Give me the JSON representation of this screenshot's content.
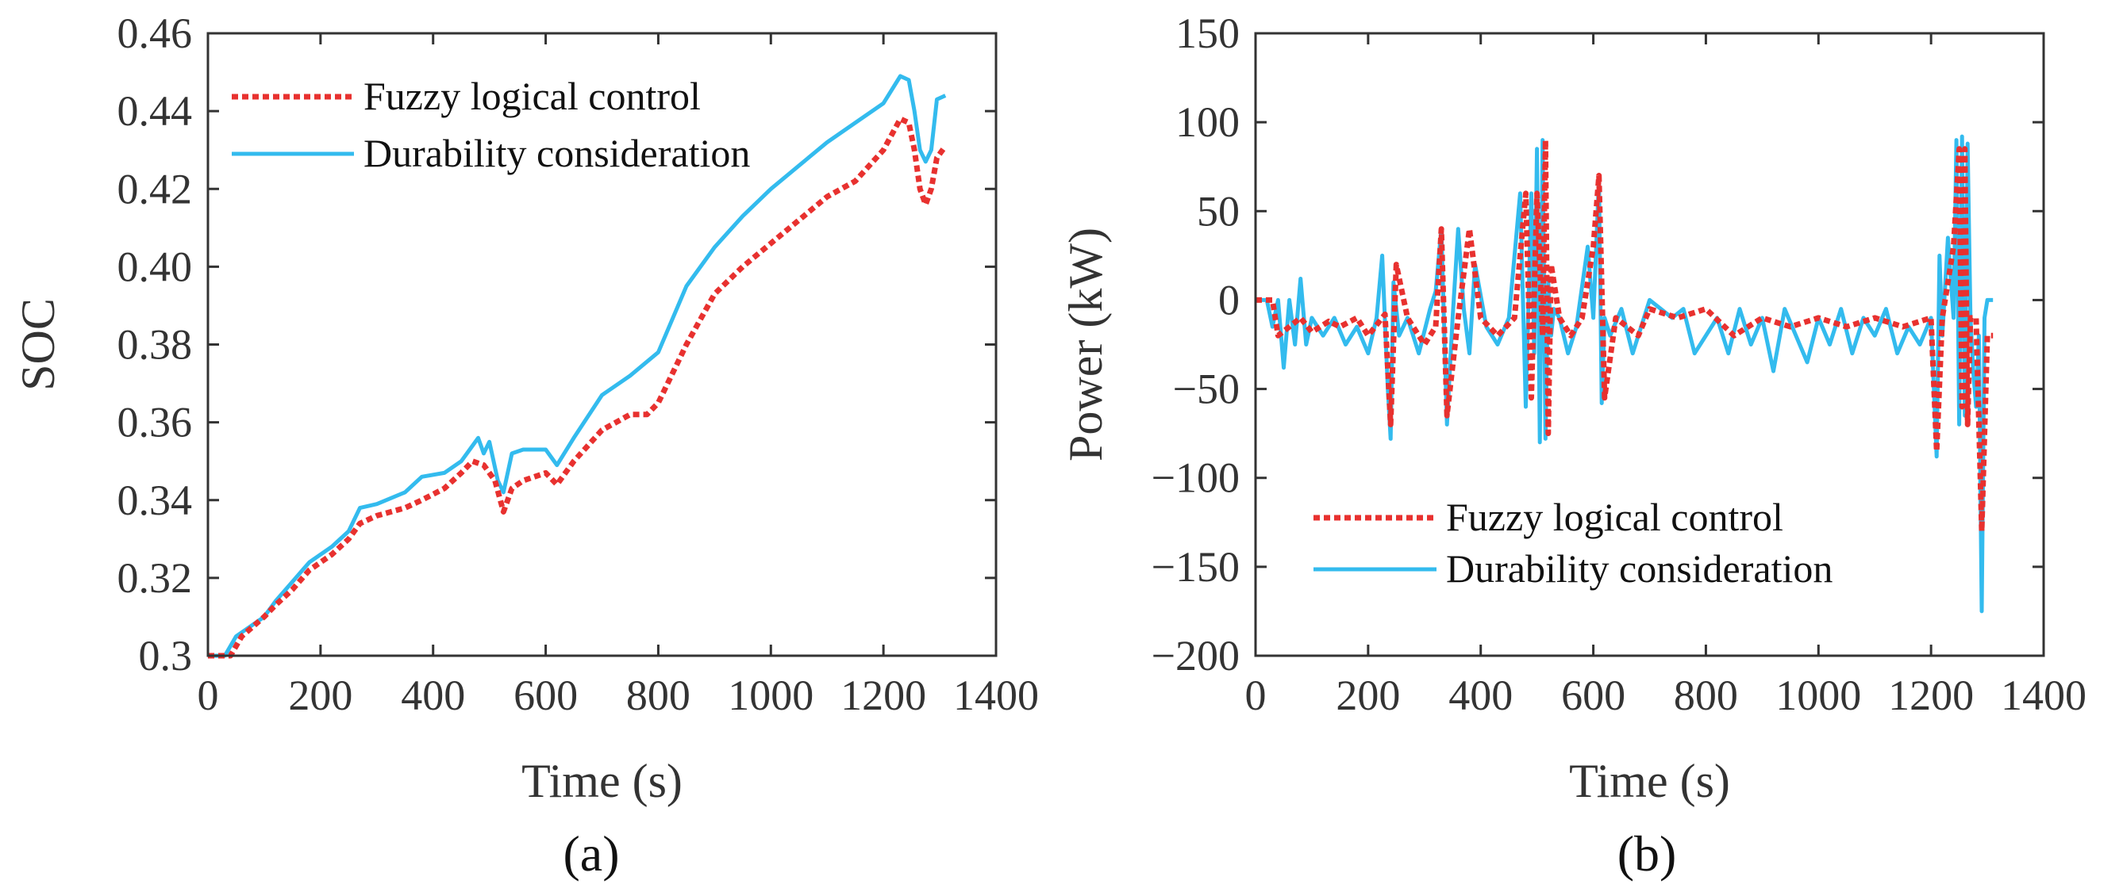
{
  "chart_data": [
    {
      "id": "a",
      "type": "line",
      "caption": "(a)",
      "xlabel": "Time (s)",
      "ylabel": "SOC",
      "xlim": [
        0,
        1400
      ],
      "ylim": [
        0.3,
        0.46
      ],
      "xticks": [
        0,
        200,
        400,
        600,
        800,
        1000,
        1200,
        1400
      ],
      "xtick_labels": [
        "0",
        "200",
        "400",
        "600",
        "800",
        "1000",
        "1200",
        "1400"
      ],
      "yticks": [
        0.3,
        0.32,
        0.34,
        0.36,
        0.38,
        0.4,
        0.42,
        0.44,
        0.46
      ],
      "ytick_labels": [
        "0.3",
        "0.32",
        "0.34",
        "0.36",
        "0.38",
        "0.40",
        "0.42",
        "0.44",
        "0.46"
      ],
      "grid": false,
      "legend_position": "top-left",
      "series": [
        {
          "name": "Fuzzy logical control",
          "color": "#e8312f",
          "style": "dotted",
          "x": [
            0,
            40,
            60,
            100,
            120,
            150,
            180,
            220,
            250,
            270,
            300,
            350,
            380,
            420,
            450,
            470,
            490,
            510,
            525,
            540,
            560,
            580,
            600,
            620,
            650,
            700,
            750,
            780,
            800,
            850,
            900,
            950,
            1000,
            1050,
            1100,
            1150,
            1200,
            1230,
            1245,
            1255,
            1265,
            1275,
            1285,
            1295,
            1310
          ],
          "y": [
            0.3,
            0.3,
            0.305,
            0.31,
            0.313,
            0.317,
            0.322,
            0.326,
            0.33,
            0.334,
            0.336,
            0.338,
            0.34,
            0.343,
            0.347,
            0.35,
            0.349,
            0.345,
            0.337,
            0.343,
            0.345,
            0.346,
            0.347,
            0.344,
            0.35,
            0.358,
            0.362,
            0.362,
            0.365,
            0.38,
            0.393,
            0.4,
            0.406,
            0.412,
            0.418,
            0.422,
            0.43,
            0.438,
            0.437,
            0.43,
            0.42,
            0.416,
            0.42,
            0.428,
            0.431
          ]
        },
        {
          "name": "Durability consideration",
          "color": "#33bbee",
          "style": "solid",
          "x": [
            0,
            30,
            50,
            100,
            120,
            150,
            180,
            220,
            250,
            270,
            300,
            350,
            380,
            420,
            450,
            470,
            480,
            490,
            500,
            515,
            525,
            540,
            560,
            600,
            620,
            650,
            700,
            750,
            800,
            850,
            900,
            950,
            1000,
            1050,
            1100,
            1150,
            1200,
            1230,
            1245,
            1255,
            1265,
            1275,
            1285,
            1295,
            1310
          ],
          "y": [
            0.3,
            0.3,
            0.305,
            0.31,
            0.314,
            0.319,
            0.324,
            0.328,
            0.332,
            0.338,
            0.339,
            0.342,
            0.346,
            0.347,
            0.35,
            0.354,
            0.356,
            0.352,
            0.355,
            0.345,
            0.342,
            0.352,
            0.353,
            0.353,
            0.349,
            0.356,
            0.367,
            0.372,
            0.378,
            0.395,
            0.405,
            0.413,
            0.42,
            0.426,
            0.432,
            0.437,
            0.442,
            0.449,
            0.448,
            0.44,
            0.43,
            0.427,
            0.43,
            0.443,
            0.444
          ]
        }
      ]
    },
    {
      "id": "b",
      "type": "line",
      "caption": "(b)",
      "xlabel": "Time (s)",
      "ylabel": "Power (kW)",
      "xlim": [
        0,
        1400
      ],
      "ylim": [
        -200,
        150
      ],
      "xticks": [
        0,
        200,
        400,
        600,
        800,
        1000,
        1200,
        1400
      ],
      "xtick_labels": [
        "0",
        "200",
        "400",
        "600",
        "800",
        "1000",
        "1200",
        "1400"
      ],
      "yticks": [
        -200,
        -150,
        -100,
        -50,
        0,
        50,
        100,
        150
      ],
      "ytick_labels": [
        "−200",
        "−150",
        "−100",
        "−50",
        "0",
        "50",
        "100",
        "150"
      ],
      "grid": false,
      "legend_position": "bottom-left",
      "series": [
        {
          "name": "Fuzzy logical control",
          "color": "#e8312f",
          "style": "dotted",
          "x": [
            0,
            30,
            40,
            60,
            80,
            100,
            130,
            150,
            180,
            200,
            230,
            240,
            250,
            270,
            300,
            320,
            330,
            340,
            360,
            380,
            400,
            430,
            460,
            480,
            490,
            500,
            510,
            515,
            520,
            525,
            540,
            560,
            580,
            600,
            610,
            620,
            640,
            680,
            700,
            750,
            800,
            850,
            900,
            950,
            1000,
            1050,
            1100,
            1150,
            1200,
            1210,
            1220,
            1240,
            1250,
            1255,
            1260,
            1265,
            1270,
            1280,
            1290,
            1300,
            1310
          ],
          "y": [
            0,
            0,
            -20,
            -15,
            -10,
            -18,
            -12,
            -15,
            -10,
            -20,
            -8,
            -70,
            20,
            -10,
            -25,
            -15,
            40,
            -65,
            -10,
            40,
            -10,
            -20,
            -10,
            60,
            -55,
            60,
            -20,
            90,
            -75,
            20,
            -10,
            -20,
            -10,
            30,
            70,
            -55,
            -10,
            -20,
            -5,
            -10,
            -5,
            -20,
            -10,
            -15,
            -10,
            -15,
            -10,
            -15,
            -10,
            -85,
            -10,
            30,
            85,
            -60,
            85,
            -70,
            -10,
            -10,
            -130,
            -20,
            -20
          ]
        },
        {
          "name": "Durability consideration",
          "color": "#33bbee",
          "style": "solid",
          "x": [
            0,
            20,
            30,
            40,
            50,
            60,
            70,
            80,
            90,
            100,
            120,
            140,
            160,
            180,
            200,
            215,
            225,
            235,
            240,
            245,
            255,
            270,
            290,
            310,
            320,
            330,
            340,
            350,
            360,
            370,
            380,
            390,
            410,
            430,
            450,
            470,
            480,
            490,
            495,
            500,
            505,
            510,
            515,
            520,
            525,
            530,
            540,
            555,
            570,
            590,
            600,
            610,
            615,
            620,
            630,
            650,
            670,
            690,
            700,
            720,
            740,
            760,
            780,
            800,
            820,
            840,
            860,
            880,
            900,
            920,
            940,
            960,
            980,
            1000,
            1020,
            1040,
            1060,
            1080,
            1100,
            1120,
            1140,
            1160,
            1180,
            1200,
            1210,
            1215,
            1220,
            1230,
            1240,
            1245,
            1250,
            1255,
            1260,
            1265,
            1270,
            1275,
            1280,
            1285,
            1290,
            1295,
            1300,
            1310
          ],
          "y": [
            0,
            0,
            -15,
            0,
            -38,
            0,
            -25,
            12,
            -25,
            -10,
            -20,
            -10,
            -25,
            -15,
            -30,
            -10,
            25,
            -50,
            -78,
            10,
            -20,
            -10,
            -30,
            -5,
            5,
            40,
            -70,
            -10,
            40,
            -5,
            -30,
            20,
            -15,
            -25,
            -10,
            60,
            -60,
            60,
            -30,
            85,
            -80,
            90,
            -78,
            10,
            -20,
            -5,
            -10,
            -30,
            -15,
            30,
            -10,
            68,
            -58,
            -10,
            -20,
            -5,
            -30,
            -10,
            0,
            -5,
            -10,
            -5,
            -30,
            -20,
            -10,
            -30,
            -5,
            -25,
            -10,
            -40,
            -5,
            -20,
            -35,
            -10,
            -25,
            -5,
            -30,
            -10,
            -20,
            -5,
            -30,
            -15,
            -25,
            -10,
            -88,
            25,
            -20,
            35,
            -10,
            90,
            -70,
            92,
            -65,
            88,
            -10,
            -40,
            -60,
            -20,
            -175,
            -10,
            0,
            0
          ]
        }
      ]
    }
  ]
}
